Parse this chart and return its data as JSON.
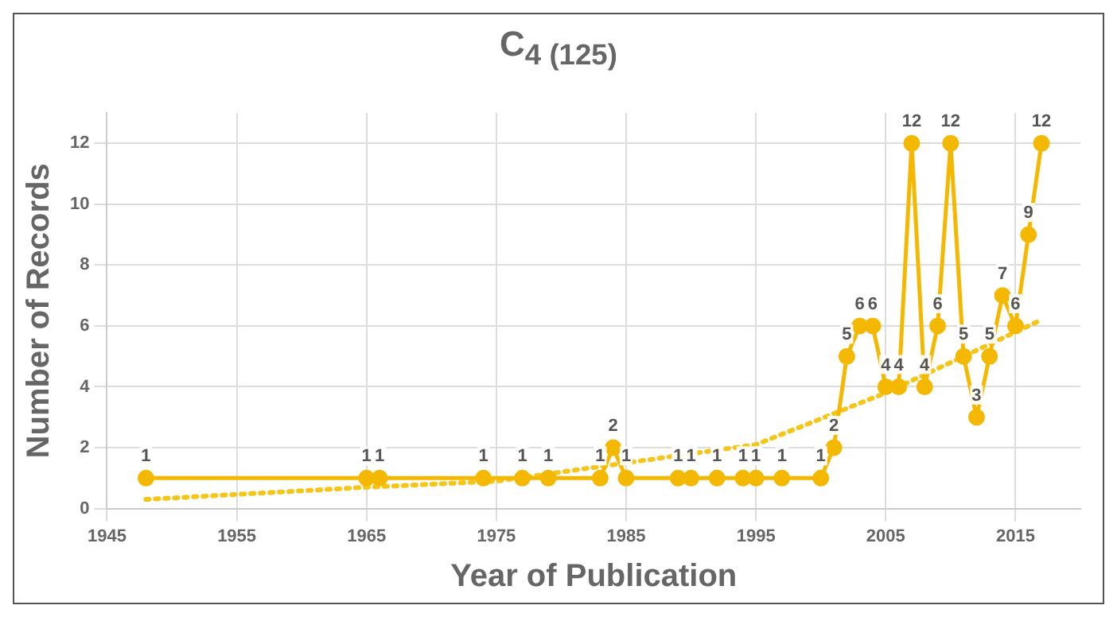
{
  "chart_data": {
    "type": "line",
    "title": "C$_{4 (125)}$",
    "xlabel": "Year of Publication",
    "ylabel": "Number of Records",
    "xlim": [
      1945,
      2020
    ],
    "xticks": [
      1945,
      1955,
      1965,
      1975,
      1985,
      1995,
      2005,
      2015
    ],
    "ylim": [
      0,
      13
    ],
    "yticks": [
      0,
      2,
      4,
      6,
      8,
      10,
      12
    ],
    "grid": true,
    "legend": false,
    "series": [
      {
        "type": "line",
        "color": "#f5b800",
        "marker": "circle",
        "line_style": "solid",
        "x": [
          1948,
          1965,
          1966,
          1974,
          1977,
          1979,
          1983,
          1984,
          1985,
          1989,
          1990,
          1992,
          1994,
          1995,
          1997,
          2000,
          2001,
          2002,
          2003,
          2004,
          2005,
          2006,
          2007,
          2008,
          2009,
          2010,
          2011,
          2012,
          2013,
          2014,
          2015,
          2016,
          2017
        ],
        "values": [
          1,
          1,
          1,
          1,
          1,
          1,
          1,
          2,
          1,
          1,
          1,
          1,
          1,
          1,
          1,
          1,
          2,
          5,
          6,
          6,
          4,
          4,
          12,
          4,
          6,
          12,
          5,
          3,
          5,
          7,
          6,
          9,
          12
        ],
        "value_labels": [
          "1",
          "1",
          "1",
          "1",
          "1",
          "1",
          "1",
          "2",
          "1",
          "1",
          "1",
          "1",
          "1",
          "1",
          "1",
          "1",
          "2",
          "5",
          "6",
          "6",
          "4",
          "4",
          "12",
          "4",
          "6",
          "12",
          "5",
          "3",
          "5",
          "7",
          "6",
          "9",
          "12"
        ]
      },
      {
        "type": "line",
        "color": "#f5c518",
        "marker": "none",
        "line_style": "dotted",
        "x": [
          1948,
          1965,
          1975,
          1985,
          1995,
          2005,
          2010,
          2017
        ],
        "values": [
          0.3,
          0.7,
          0.9,
          1.5,
          2.1,
          3.8,
          4.8,
          6.2
        ]
      }
    ]
  }
}
